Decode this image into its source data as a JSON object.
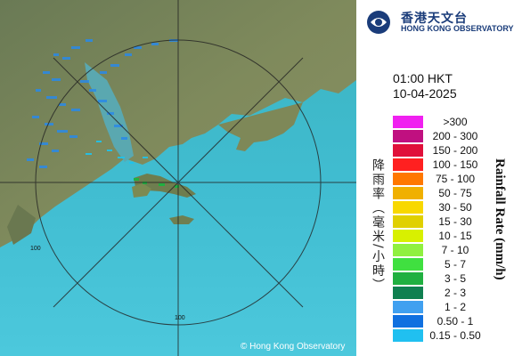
{
  "header": {
    "org_name_cn": "香港天文台",
    "org_name_en": "HONG KONG OBSERVATORY"
  },
  "timestamp": {
    "time": "01:00 HKT",
    "date": "10-04-2025"
  },
  "legend": {
    "title_cn": "降雨率（毫米/小時）",
    "title_en": "Rainfall Rate (mm/h)",
    "items": [
      {
        "label": ">300",
        "color": "#f020f0"
      },
      {
        "label": "200 - 300",
        "color": "#c01080"
      },
      {
        "label": "150 - 200",
        "color": "#e0103a"
      },
      {
        "label": "100 - 150",
        "color": "#ff2020"
      },
      {
        "label": "75 - 100",
        "color": "#ff7800"
      },
      {
        "label": "50 - 75",
        "color": "#f0b000"
      },
      {
        "label": "30 - 50",
        "color": "#f8d800"
      },
      {
        "label": "15 - 30",
        "color": "#e0d000"
      },
      {
        "label": "10 - 15",
        "color": "#d8f000"
      },
      {
        "label": "7 - 10",
        "color": "#90f040"
      },
      {
        "label": "5 - 7",
        "color": "#40e040"
      },
      {
        "label": "3 - 5",
        "color": "#20b040"
      },
      {
        "label": "2 - 3",
        "color": "#108050"
      },
      {
        "label": "1 - 2",
        "color": "#40a0f0"
      },
      {
        "label": "0.50 - 1",
        "color": "#1070e0"
      },
      {
        "label": "0.15 - 0.50",
        "color": "#20c0f0"
      }
    ]
  },
  "map": {
    "range_ring_label": "100",
    "copyright": "© Hong Kong Observatory"
  }
}
